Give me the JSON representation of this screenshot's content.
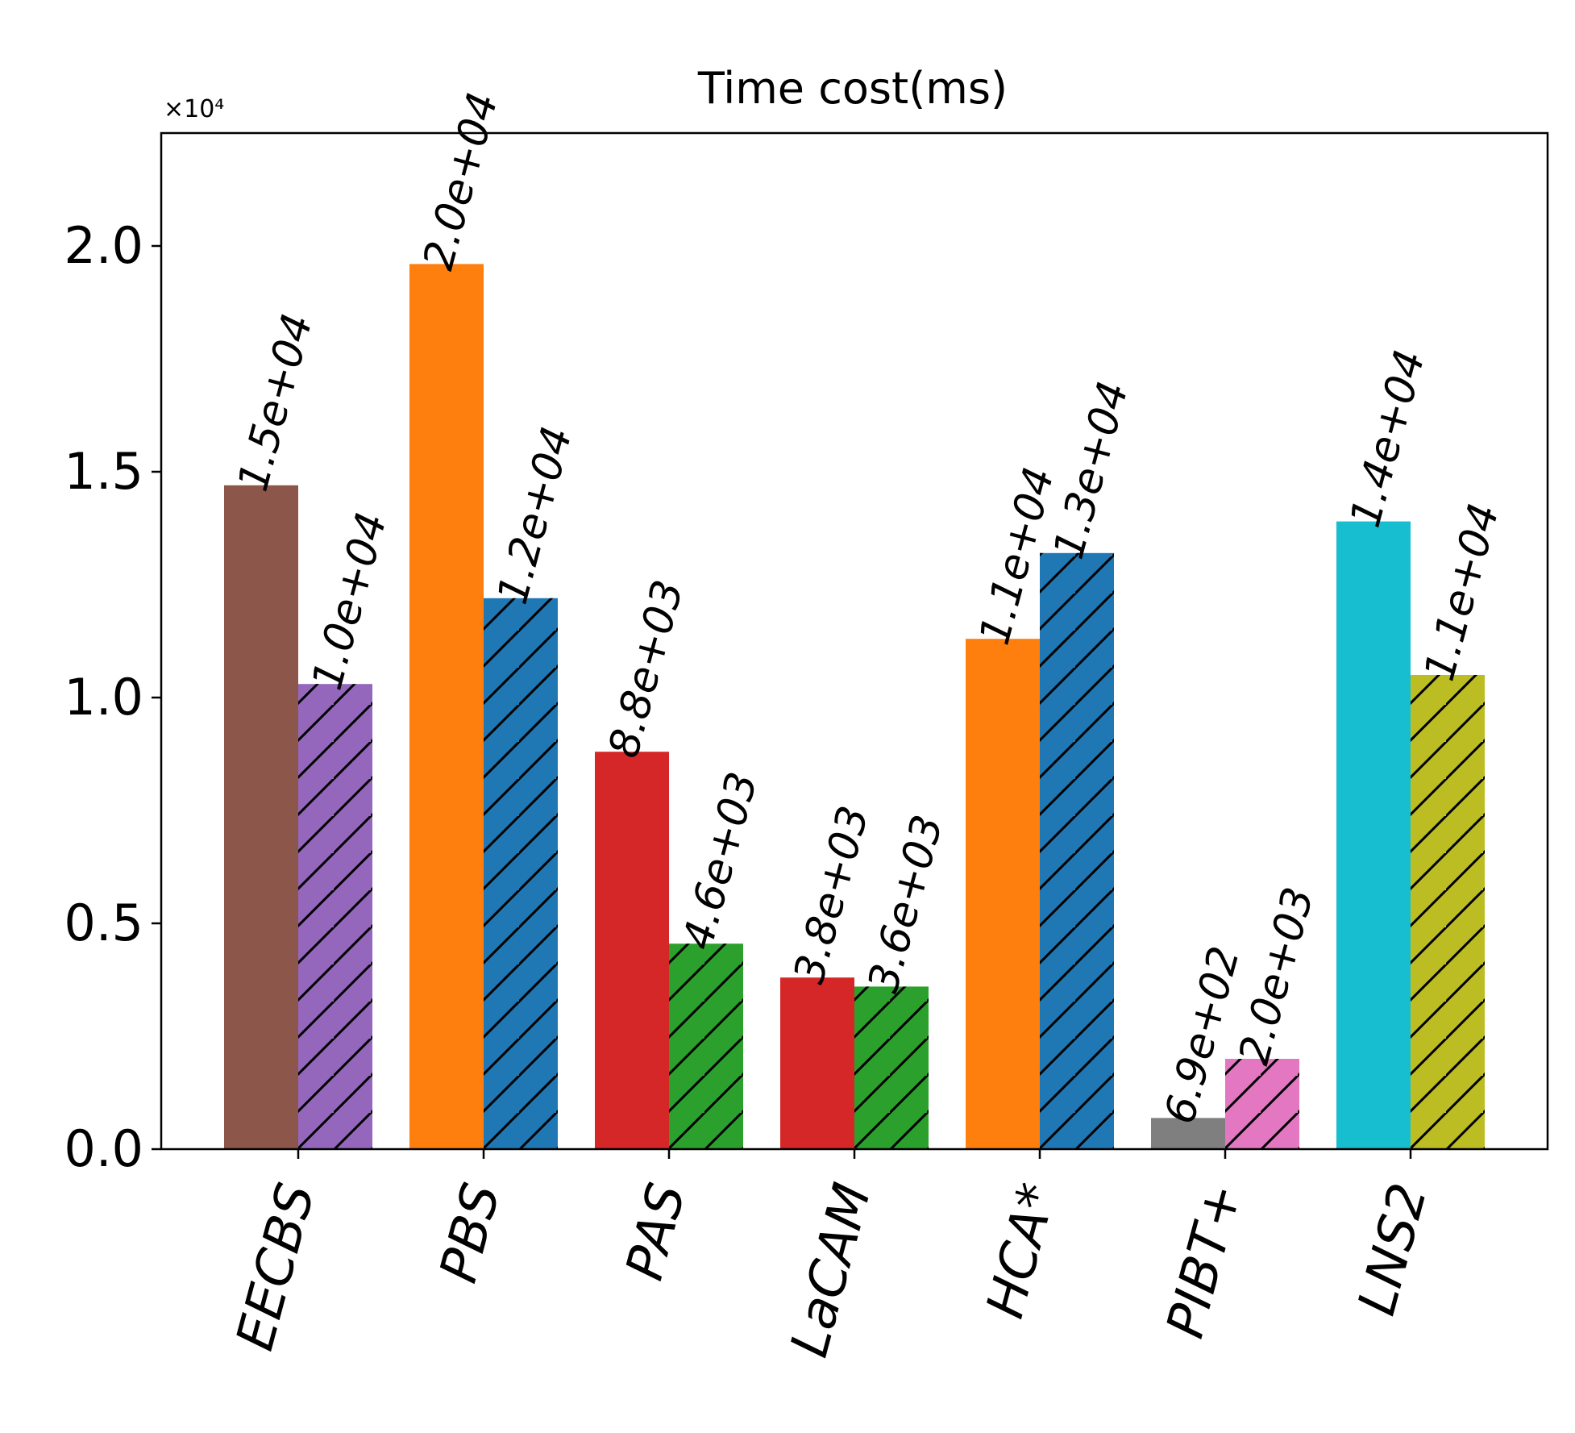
{
  "chart_data": {
    "type": "bar",
    "title": "Time cost(ms)",
    "scale_label": "×10⁴",
    "scale": 10000,
    "ylim": [
      0,
      22500
    ],
    "yticks": [
      0,
      5000,
      10000,
      15000,
      20000
    ],
    "ytick_labels": [
      "0.0",
      "0.5",
      "1.0",
      "1.5",
      "2.0"
    ],
    "categories": [
      "EECBS",
      "PBS",
      "PAS",
      "LaCAM",
      "HCA*",
      "PIBT+",
      "LNS2"
    ],
    "series": [
      {
        "name": "solid",
        "hatch": false,
        "values": [
          14700,
          19600,
          8800,
          3800,
          11300,
          690,
          13900
        ],
        "labels": [
          "1.5e+04",
          "2.0e+04",
          "8.8e+03",
          "3.8e+03",
          "1.1e+04",
          "6.9e+02",
          "1.4e+04"
        ],
        "colors": [
          "#8c564b",
          "#ff7f0e",
          "#d62728",
          "#d62728",
          "#ff7f0e",
          "#7f7f7f",
          "#17becf"
        ]
      },
      {
        "name": "hatched",
        "hatch": true,
        "values": [
          10300,
          12200,
          4550,
          3600,
          13200,
          2000,
          10500
        ],
        "labels": [
          "1.0e+04",
          "1.2e+04",
          "4.6e+03",
          "3.6e+03",
          "1.3e+04",
          "2.0e+03",
          "1.1e+04"
        ],
        "colors": [
          "#9467bd",
          "#1f77b4",
          "#2ca02c",
          "#2ca02c",
          "#1f77b4",
          "#e377c2",
          "#bcbd22"
        ]
      }
    ]
  }
}
